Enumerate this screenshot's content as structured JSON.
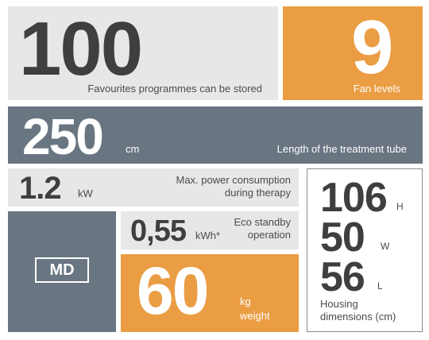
{
  "favourites": {
    "value": "100",
    "label": "Favourites programmes can be stored"
  },
  "fan": {
    "value": "9",
    "label": "Fan levels"
  },
  "tube": {
    "value": "250",
    "unit": "cm",
    "label": "Length of the treatment tube"
  },
  "power": {
    "value": "1.2",
    "unit": "kW",
    "label_line1": "Max. power consumption",
    "label_line2": "during therapy"
  },
  "md": {
    "badge": "MD"
  },
  "eco": {
    "value": "0,55",
    "unit": "kWh*",
    "label_line1": "Eco standby",
    "label_line2": "operation"
  },
  "weight": {
    "value": "60",
    "unit": "kg",
    "label": "weight"
  },
  "housing": {
    "height": "106",
    "height_unit": "H",
    "width": "50",
    "width_unit": "W",
    "length": "56",
    "length_unit": "L",
    "label_line1": "Housing",
    "label_line2": "dimensions (cm)"
  },
  "colors": {
    "light_grey": "#e6e7e8",
    "slate": "#697581",
    "orange": "#ea9d43",
    "dark_text": "#3f3f3f"
  }
}
